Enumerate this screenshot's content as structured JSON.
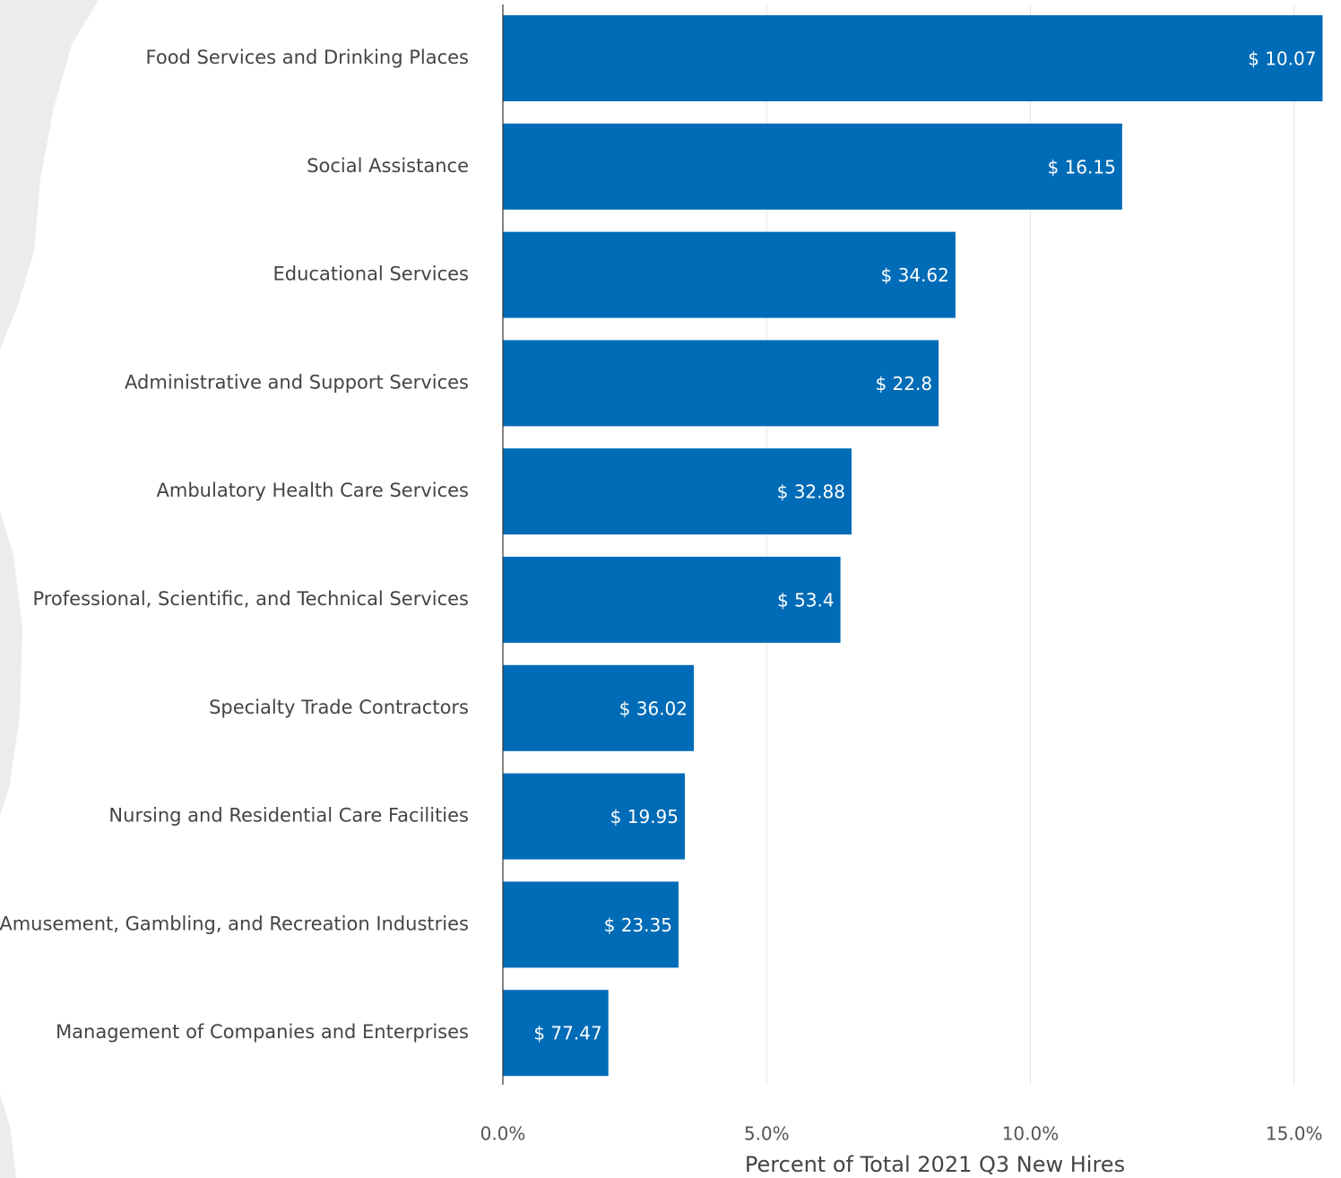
{
  "chart_data": {
    "type": "bar",
    "orientation": "horizontal",
    "x_label": "Percent of Total 2021 Q3 New Hires",
    "categories": [
      "Food Services and Drinking Places",
      "Social Assistance",
      "Educational Services",
      "Administrative and Support Services",
      "Ambulatory Health Care Services",
      "Professional, Scientific, and Technical Services",
      "Specialty Trade Contractors",
      "Nursing and Residential Care Facilities",
      "Amusement, Gambling, and Recreation Industries",
      "Management of Companies and Enterprises"
    ],
    "values": [
      15.54,
      11.74,
      8.58,
      8.26,
      6.61,
      6.4,
      3.62,
      3.45,
      3.33,
      2.0
    ],
    "bar_labels": [
      "$ 10.07",
      "$ 16.15",
      "$ 34.62",
      "$ 22.8",
      "$ 32.88",
      "$ 53.4",
      "$ 36.02",
      "$ 19.95",
      "$ 23.35",
      "$ 77.47"
    ],
    "color": "#006bb6",
    "xlim": [
      0,
      15.6
    ],
    "xticks": [
      {
        "value": 0,
        "label": "0.0%"
      },
      {
        "value": 5,
        "label": "5.0%"
      },
      {
        "value": 10,
        "label": "10.0%"
      },
      {
        "value": 15,
        "label": "15.0%"
      }
    ],
    "grid": true
  }
}
